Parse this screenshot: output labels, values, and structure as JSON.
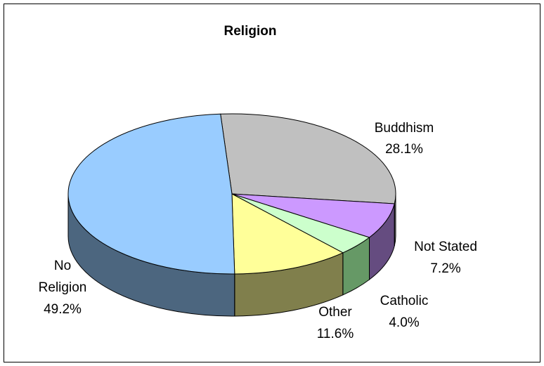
{
  "chart_data": {
    "type": "pie",
    "title": "Religion",
    "slices": [
      {
        "name": "Buddhism",
        "value": 28.1,
        "label": "28.1%",
        "color": "#C0C0C0",
        "side": "#8F8F8F"
      },
      {
        "name": "Not Stated",
        "value": 7.2,
        "label": "7.2%",
        "color": "#CC99FF",
        "side": "#654C80"
      },
      {
        "name": "Catholic",
        "value": 4.0,
        "label": "4.0%",
        "color": "#CCFFCC",
        "side": "#669966"
      },
      {
        "name": "Other",
        "value": 11.6,
        "label": "11.6%",
        "color": "#FFFF99",
        "side": "#807F4C"
      },
      {
        "name": "No Religion",
        "value": 49.2,
        "label": "49.2%",
        "color": "#99CCFF",
        "side": "#4C667F"
      }
    ],
    "legend": "none",
    "style": "3d-pie"
  }
}
